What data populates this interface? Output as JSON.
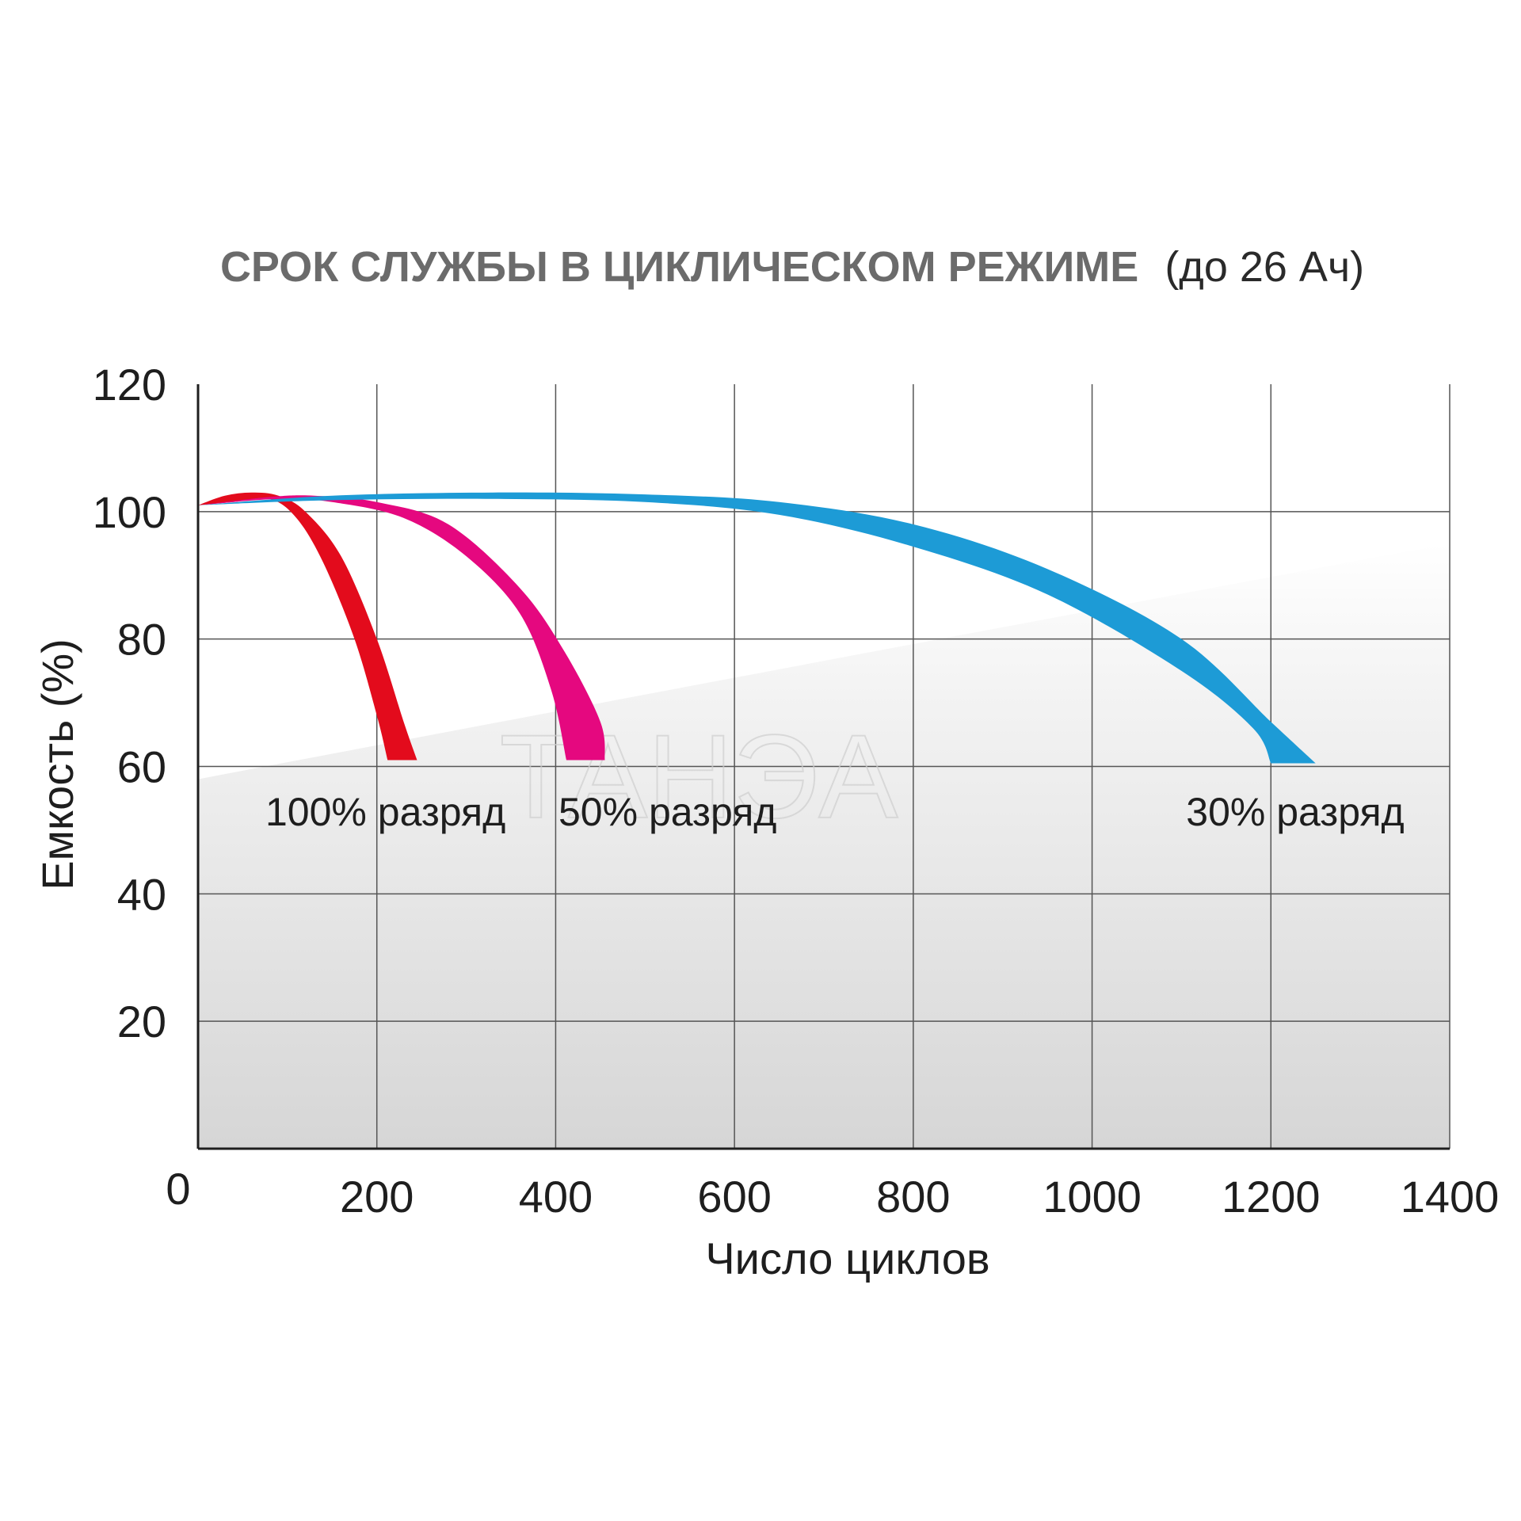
{
  "chart_data": {
    "type": "area",
    "title": "СРОК СЛУЖБЫ В ЦИКЛИЧЕСКОМ РЕЖИМЕ",
    "title_suffix": "(до 26 Ач)",
    "xlabel": "Число циклов",
    "ylabel": "Емкость (%)",
    "xlim": [
      0,
      1400
    ],
    "ylim": [
      0,
      120
    ],
    "x_ticks": [
      "0",
      "200",
      "400",
      "600",
      "800",
      "1000",
      "1200",
      "1400"
    ],
    "y_ticks": [
      "20",
      "40",
      "60",
      "80",
      "100",
      "120"
    ],
    "grid": true,
    "watermark": "ТАНЭА",
    "series": [
      {
        "name": "100% разряд",
        "color": "#e30b1c",
        "upper": [
          [
            0,
            101
          ],
          [
            30,
            102.5
          ],
          [
            60,
            103
          ],
          [
            90,
            102.5
          ],
          [
            120,
            100
          ],
          [
            160,
            93
          ],
          [
            200,
            80
          ],
          [
            230,
            67
          ],
          [
            245,
            61
          ]
        ],
        "lower": [
          [
            0,
            101
          ],
          [
            40,
            101.5
          ],
          [
            80,
            102
          ],
          [
            110,
            99
          ],
          [
            140,
            92
          ],
          [
            175,
            80
          ],
          [
            200,
            68
          ],
          [
            212,
            61
          ]
        ]
      },
      {
        "name": "50% разряд",
        "color": "#e5087f",
        "upper": [
          [
            0,
            101
          ],
          [
            80,
            102.3
          ],
          [
            130,
            102.5
          ],
          [
            200,
            101.5
          ],
          [
            280,
            98
          ],
          [
            360,
            88
          ],
          [
            410,
            78
          ],
          [
            450,
            67
          ],
          [
            455,
            61
          ]
        ],
        "lower": [
          [
            0,
            101
          ],
          [
            90,
            102
          ],
          [
            150,
            101.5
          ],
          [
            230,
            99
          ],
          [
            300,
            93
          ],
          [
            360,
            84
          ],
          [
            395,
            72
          ],
          [
            412,
            61
          ]
        ]
      },
      {
        "name": "30% разряд",
        "color": "#1d9bd6",
        "upper": [
          [
            0,
            101
          ],
          [
            150,
            102.5
          ],
          [
            330,
            103
          ],
          [
            500,
            102.7
          ],
          [
            650,
            101.5
          ],
          [
            800,
            98
          ],
          [
            950,
            91
          ],
          [
            1100,
            80
          ],
          [
            1200,
            67
          ],
          [
            1250,
            60.5
          ]
        ],
        "lower": [
          [
            0,
            101
          ],
          [
            150,
            101.8
          ],
          [
            330,
            102
          ],
          [
            500,
            101.5
          ],
          [
            650,
            99.5
          ],
          [
            800,
            94.5
          ],
          [
            950,
            87
          ],
          [
            1100,
            75
          ],
          [
            1180,
            66
          ],
          [
            1200,
            60.5
          ]
        ]
      }
    ]
  }
}
